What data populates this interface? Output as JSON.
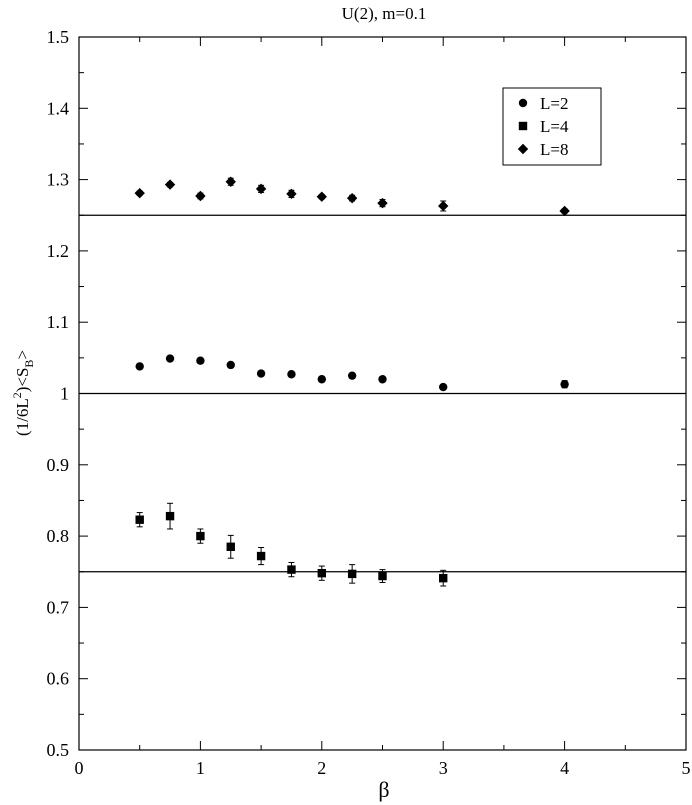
{
  "chart_data": {
    "type": "scatter",
    "title": "U(2), m=0.1",
    "xlabel": "β",
    "ylabel": {
      "prefix": "(1/6L",
      "sup": "2",
      "middle": ")<S",
      "sub": "B",
      "suffix": ">"
    },
    "xlim": [
      0,
      5
    ],
    "ylim": [
      0.5,
      1.5
    ],
    "x_ticks": [
      "0",
      "1",
      "2",
      "3",
      "4",
      "5"
    ],
    "y_ticks": [
      "0.5",
      "0.6",
      "0.7",
      "0.8",
      "0.9",
      "1",
      "1.1",
      "1.2",
      "1.3",
      "1.4",
      "1.5"
    ],
    "grid": false,
    "legend_position": "top-right",
    "reference_lines": [
      0.75,
      1.0,
      1.25
    ],
    "series": [
      {
        "name": "L=2",
        "marker": "circle",
        "points": [
          {
            "x": 0.5,
            "y": 1.038,
            "err": 0.003
          },
          {
            "x": 0.75,
            "y": 1.049,
            "err": 0.003
          },
          {
            "x": 1.0,
            "y": 1.046,
            "err": 0.003
          },
          {
            "x": 1.25,
            "y": 1.04,
            "err": 0.003
          },
          {
            "x": 1.5,
            "y": 1.028,
            "err": 0.003
          },
          {
            "x": 1.75,
            "y": 1.027,
            "err": 0.003
          },
          {
            "x": 2.0,
            "y": 1.02,
            "err": 0.003
          },
          {
            "x": 2.25,
            "y": 1.025,
            "err": 0.003
          },
          {
            "x": 2.5,
            "y": 1.02,
            "err": 0.003
          },
          {
            "x": 3.0,
            "y": 1.009,
            "err": 0.003
          },
          {
            "x": 4.0,
            "y": 1.013,
            "err": 0.005
          }
        ]
      },
      {
        "name": "L=4",
        "marker": "square",
        "points": [
          {
            "x": 0.5,
            "y": 0.823,
            "err": 0.01
          },
          {
            "x": 0.75,
            "y": 0.828,
            "err": 0.018
          },
          {
            "x": 1.0,
            "y": 0.8,
            "err": 0.01
          },
          {
            "x": 1.25,
            "y": 0.785,
            "err": 0.016
          },
          {
            "x": 1.5,
            "y": 0.772,
            "err": 0.012
          },
          {
            "x": 1.75,
            "y": 0.753,
            "err": 0.01
          },
          {
            "x": 2.0,
            "y": 0.748,
            "err": 0.01
          },
          {
            "x": 2.25,
            "y": 0.747,
            "err": 0.013
          },
          {
            "x": 2.5,
            "y": 0.744,
            "err": 0.009
          },
          {
            "x": 3.0,
            "y": 0.741,
            "err": 0.011
          }
        ]
      },
      {
        "name": "L=8",
        "marker": "diamond",
        "points": [
          {
            "x": 0.5,
            "y": 1.281,
            "err": 0.003
          },
          {
            "x": 0.75,
            "y": 1.293,
            "err": 0.003
          },
          {
            "x": 1.0,
            "y": 1.277,
            "err": 0.004
          },
          {
            "x": 1.25,
            "y": 1.297,
            "err": 0.005
          },
          {
            "x": 1.5,
            "y": 1.287,
            "err": 0.005
          },
          {
            "x": 1.75,
            "y": 1.28,
            "err": 0.005
          },
          {
            "x": 2.0,
            "y": 1.276,
            "err": 0.003
          },
          {
            "x": 2.25,
            "y": 1.274,
            "err": 0.004
          },
          {
            "x": 2.5,
            "y": 1.267,
            "err": 0.005
          },
          {
            "x": 3.0,
            "y": 1.263,
            "err": 0.007
          },
          {
            "x": 4.0,
            "y": 1.256,
            "err": 0.003
          }
        ]
      }
    ]
  }
}
